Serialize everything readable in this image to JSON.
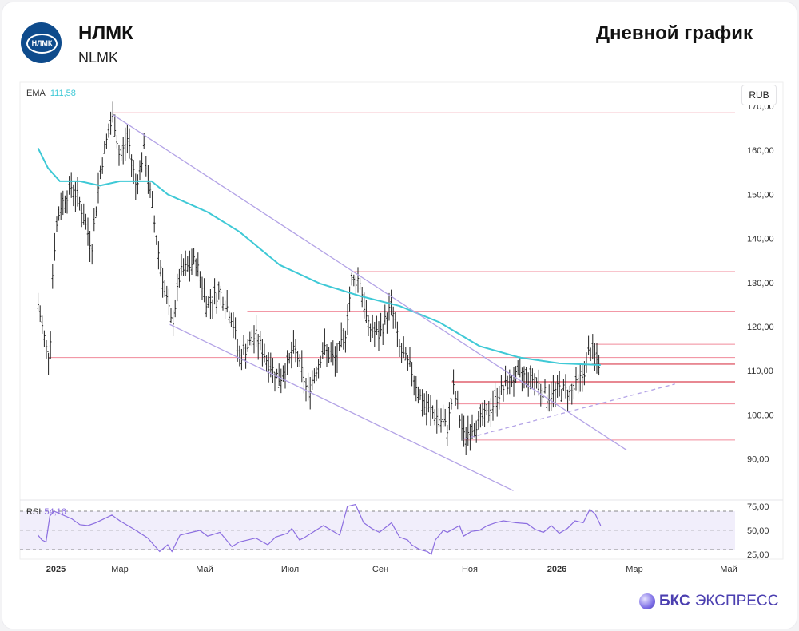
{
  "header": {
    "title": "НЛМК",
    "subtitle": "NLMK",
    "chart_type": "Дневной график",
    "logo_text": "НЛМК"
  },
  "currency": "RUB",
  "indicators": {
    "ema_label": "EMA",
    "ema_value": "111,58",
    "rsi_label": "RSI",
    "rsi_value": "54,16"
  },
  "brand": {
    "bold": "БКС",
    "rest": "ЭКСПРЕСС"
  },
  "colors": {
    "ema": "#3fc9d6",
    "rsi": "#8c6ee0",
    "level": "#f08a9a",
    "channel": "#b3a3e6",
    "bars": "#222222"
  },
  "chart_data": {
    "type": "line",
    "title": "НЛМК — Дневной график",
    "x_unit": "months since Jan 2025",
    "xlim": [
      -1.15,
      16
    ],
    "ylim": [
      85,
      172
    ],
    "y_ticks": [
      "90,00",
      "100,00",
      "110,00",
      "120,00",
      "130,00",
      "140,00",
      "150,00",
      "160,00",
      "170,00"
    ],
    "x_ticks": [
      {
        "t": 0,
        "label": "2025"
      },
      {
        "t": 2,
        "label": "Мар"
      },
      {
        "t": 4,
        "label": "Май"
      },
      {
        "t": 6,
        "label": "Июл"
      },
      {
        "t": 8,
        "label": "Сен"
      },
      {
        "t": 10,
        "label": "Ноя"
      },
      {
        "t": 12,
        "label": "2026"
      },
      {
        "t": 14,
        "label": "Мар"
      },
      {
        "t": 16,
        "label": "Май"
      }
    ],
    "price": [
      [
        -1.12,
        125
      ],
      [
        -0.5,
        113
      ],
      [
        -0.33,
        118
      ],
      [
        -0.2,
        133
      ],
      [
        0.12,
        147
      ],
      [
        0.5,
        152
      ],
      [
        0.75,
        148
      ],
      [
        1.12,
        138
      ],
      [
        1.38,
        155
      ],
      [
        1.58,
        162
      ],
      [
        1.8,
        168
      ],
      [
        2.0,
        158
      ],
      [
        2.19,
        163
      ],
      [
        2.38,
        152
      ],
      [
        2.57,
        160
      ],
      [
        2.75,
        148
      ],
      [
        2.94,
        135
      ],
      [
        3.13,
        125
      ],
      [
        3.23,
        120
      ],
      [
        3.42,
        132
      ],
      [
        3.79,
        135
      ],
      [
        4.07,
        125
      ],
      [
        4.36,
        128
      ],
      [
        4.64,
        122
      ],
      [
        4.82,
        113
      ],
      [
        5.2,
        118
      ],
      [
        5.48,
        112
      ],
      [
        5.76,
        108
      ],
      [
        6.12,
        115
      ],
      [
        6.39,
        105
      ],
      [
        6.74,
        115
      ],
      [
        7.01,
        112
      ],
      [
        7.22,
        118
      ],
      [
        7.36,
        130
      ],
      [
        7.54,
        131
      ],
      [
        7.72,
        120
      ],
      [
        7.98,
        118
      ],
      [
        8.25,
        125
      ],
      [
        8.43,
        115
      ],
      [
        8.7,
        110
      ],
      [
        8.96,
        102
      ],
      [
        9.23,
        100
      ],
      [
        9.5,
        97
      ],
      [
        9.64,
        106
      ],
      [
        9.86,
        95
      ],
      [
        10.13,
        98
      ],
      [
        10.4,
        100
      ],
      [
        10.68,
        105
      ],
      [
        10.95,
        108
      ],
      [
        11.23,
        109
      ],
      [
        11.5,
        108
      ],
      [
        11.78,
        104
      ],
      [
        12.06,
        106
      ],
      [
        12.37,
        105
      ],
      [
        12.68,
        109
      ],
      [
        12.85,
        115
      ],
      [
        12.99,
        113
      ],
      [
        13.13,
        111
      ]
    ],
    "ema": [
      [
        -1.12,
        160.5
      ],
      [
        -0.5,
        156
      ],
      [
        0.12,
        153
      ],
      [
        0.75,
        153
      ],
      [
        1.38,
        152
      ],
      [
        2.0,
        153
      ],
      [
        2.75,
        153
      ],
      [
        3.13,
        150
      ],
      [
        4.07,
        146
      ],
      [
        4.82,
        141.5
      ],
      [
        5.76,
        134
      ],
      [
        6.66,
        129.8
      ],
      [
        7.54,
        127
      ],
      [
        8.43,
        124.7
      ],
      [
        9.32,
        121
      ],
      [
        10.22,
        115.6
      ],
      [
        11.14,
        113
      ],
      [
        12.06,
        111.7
      ],
      [
        13.13,
        111.3
      ]
    ],
    "levels": [
      {
        "value": 168.5,
        "from": 1.8
      },
      {
        "value": 132.5,
        "from": 7.4
      },
      {
        "value": 123.5,
        "from": 5.0
      },
      {
        "value": 116,
        "from": 13.0
      },
      {
        "value": 113,
        "from": -0.5
      },
      {
        "value": 111.5,
        "from": 12.9,
        "strong": true
      },
      {
        "value": 107.5,
        "from": 9.6,
        "strong": true
      },
      {
        "value": 102.5,
        "from": 9.7
      },
      {
        "value": 94.3,
        "from": 9.86
      }
    ],
    "trendlines": [
      {
        "from": [
          1.8,
          168
        ],
        "to": [
          13.8,
          92
        ]
      },
      {
        "from": [
          3.18,
          120.5
        ],
        "to": [
          11.0,
          82.8
        ]
      },
      {
        "from": [
          9.86,
          94.5
        ],
        "to": [
          14.86,
          107
        ],
        "dashed": true
      }
    ],
    "rsi": {
      "ylim": [
        20,
        80
      ],
      "band": [
        30,
        70
      ],
      "mid": 50,
      "ticks": [
        "25,00",
        "50,00",
        "75,00"
      ],
      "values": [
        [
          -1.12,
          45
        ],
        [
          -0.88,
          40
        ],
        [
          -0.62,
          38
        ],
        [
          -0.38,
          65
        ],
        [
          -0.12,
          70
        ],
        [
          0.5,
          62
        ],
        [
          0.75,
          56
        ],
        [
          1.0,
          55
        ],
        [
          1.25,
          58
        ],
        [
          1.75,
          66
        ],
        [
          2.0,
          60
        ],
        [
          2.19,
          55
        ],
        [
          2.38,
          50
        ],
        [
          2.66,
          42
        ],
        [
          2.94,
          28
        ],
        [
          3.13,
          35
        ],
        [
          3.23,
          28
        ],
        [
          3.42,
          45
        ],
        [
          3.6,
          47
        ],
        [
          3.89,
          50
        ],
        [
          4.07,
          44
        ],
        [
          4.36,
          48
        ],
        [
          4.64,
          33
        ],
        [
          4.82,
          38
        ],
        [
          5.2,
          42
        ],
        [
          5.48,
          35
        ],
        [
          5.66,
          43
        ],
        [
          5.94,
          47
        ],
        [
          6.04,
          52
        ],
        [
          6.21,
          40
        ],
        [
          6.3,
          42
        ],
        [
          6.57,
          50
        ],
        [
          6.74,
          55
        ],
        [
          6.92,
          50
        ],
        [
          7.1,
          45
        ],
        [
          7.27,
          75
        ],
        [
          7.45,
          77
        ],
        [
          7.63,
          58
        ],
        [
          7.81,
          52
        ],
        [
          7.98,
          48
        ],
        [
          8.25,
          58
        ],
        [
          8.43,
          43
        ],
        [
          8.61,
          40
        ],
        [
          8.7,
          35
        ],
        [
          8.88,
          30
        ],
        [
          9.05,
          28
        ],
        [
          9.14,
          25
        ],
        [
          9.23,
          40
        ],
        [
          9.41,
          50
        ],
        [
          9.5,
          48
        ],
        [
          9.77,
          55
        ],
        [
          9.86,
          44
        ],
        [
          10.04,
          49
        ],
        [
          10.22,
          50
        ],
        [
          10.4,
          55
        ],
        [
          10.59,
          58
        ],
        [
          10.77,
          60
        ],
        [
          11.05,
          58
        ],
        [
          11.32,
          57
        ],
        [
          11.5,
          51
        ],
        [
          11.69,
          48
        ],
        [
          11.87,
          55
        ],
        [
          12.06,
          47
        ],
        [
          12.27,
          52
        ],
        [
          12.47,
          60
        ],
        [
          12.68,
          58
        ],
        [
          12.85,
          72
        ],
        [
          12.99,
          67
        ],
        [
          13.13,
          55
        ]
      ]
    }
  }
}
